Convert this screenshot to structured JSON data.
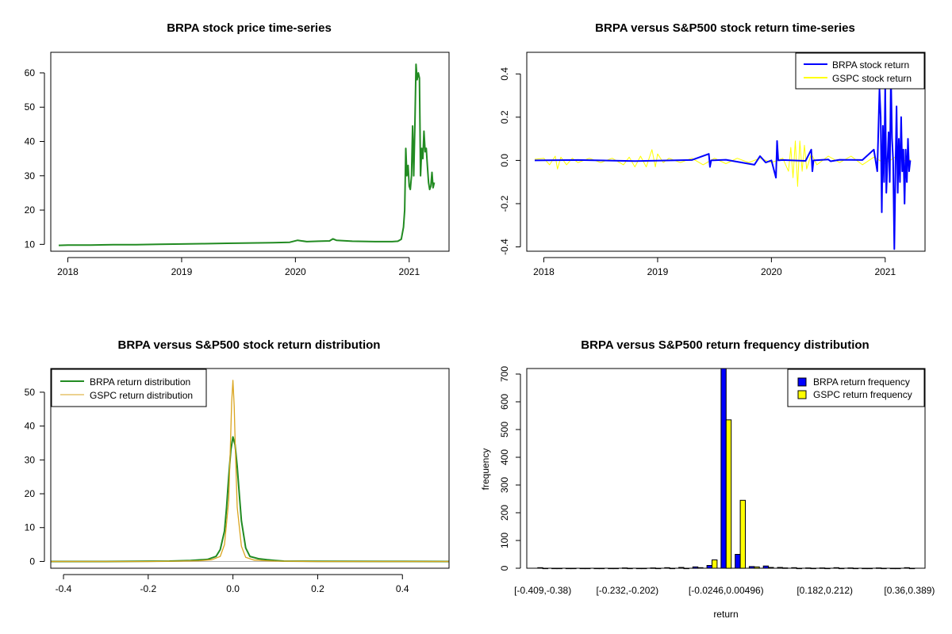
{
  "chart_data": [
    {
      "type": "line",
      "title": "BRPA stock price time-series",
      "xlabel": "",
      "ylabel": "",
      "xlim": [
        2017.85,
        2021.35
      ],
      "ylim": [
        8,
        66
      ],
      "x_ticks": [
        2018,
        2019,
        2020,
        2021
      ],
      "x_tick_labels": [
        "2018",
        "2019",
        "2020",
        "2021"
      ],
      "y_ticks": [
        10,
        20,
        30,
        40,
        50,
        60
      ],
      "y_tick_labels": [
        "10",
        "20",
        "30",
        "40",
        "50",
        "60"
      ],
      "series": [
        {
          "name": "BRPA price",
          "color": "#228B22",
          "x": [
            2017.92,
            2018.0,
            2018.2,
            2018.4,
            2018.6,
            2018.8,
            2019.0,
            2019.2,
            2019.4,
            2019.6,
            2019.8,
            2019.95,
            2020.02,
            2020.1,
            2020.2,
            2020.3,
            2020.33,
            2020.36,
            2020.5,
            2020.7,
            2020.85,
            2020.9,
            2020.93,
            2020.95,
            2020.96,
            2020.97,
            2020.98,
            2020.99,
            2021.0,
            2021.01,
            2021.02,
            2021.03,
            2021.04,
            2021.05,
            2021.06,
            2021.07,
            2021.08,
            2021.09,
            2021.1,
            2021.11,
            2021.12,
            2021.13,
            2021.14,
            2021.15,
            2021.16,
            2021.17,
            2021.18,
            2021.19,
            2021.2,
            2021.21,
            2021.22
          ],
          "y": [
            9.7,
            9.8,
            9.8,
            9.9,
            9.9,
            10.0,
            10.1,
            10.2,
            10.3,
            10.4,
            10.5,
            10.6,
            11.2,
            10.8,
            10.9,
            11.0,
            11.6,
            11.2,
            10.9,
            10.8,
            10.8,
            10.9,
            11.5,
            15.0,
            20.0,
            38.0,
            30.0,
            33.0,
            27.0,
            26.0,
            30.0,
            44.5,
            30.0,
            45.0,
            62.5,
            58.0,
            60.0,
            58.5,
            30.0,
            38.0,
            35.0,
            43.0,
            37.0,
            38.0,
            33.0,
            28.0,
            26.0,
            27.0,
            31.0,
            26.5,
            28.0
          ]
        }
      ]
    },
    {
      "type": "line",
      "title": "BRPA versus S&P500 stock return time-series",
      "xlabel": "",
      "ylabel": "",
      "xlim": [
        2017.85,
        2021.35
      ],
      "ylim": [
        -0.42,
        0.5
      ],
      "x_ticks": [
        2018,
        2019,
        2020,
        2021
      ],
      "x_tick_labels": [
        "2018",
        "2019",
        "2020",
        "2021"
      ],
      "y_ticks": [
        -0.4,
        -0.2,
        0.0,
        0.2,
        0.4
      ],
      "y_tick_labels": [
        "-0.4",
        "-0.2",
        "0.0",
        "0.2",
        "0.4"
      ],
      "legend": {
        "position": "top-right",
        "entries": [
          "BRPA stock return",
          "GSPC stock return"
        ]
      },
      "series": [
        {
          "name": "GSPC stock return",
          "color": "#FFFF00",
          "x": [
            2017.92,
            2018.0,
            2018.05,
            2018.1,
            2018.12,
            2018.15,
            2018.2,
            2018.25,
            2018.3,
            2018.4,
            2018.5,
            2018.6,
            2018.7,
            2018.75,
            2018.8,
            2018.85,
            2018.9,
            2018.95,
            2018.98,
            2019.0,
            2019.05,
            2019.1,
            2019.2,
            2019.3,
            2019.4,
            2019.5,
            2019.6,
            2019.7,
            2019.8,
            2019.9,
            2020.0,
            2020.1,
            2020.15,
            2020.17,
            2020.19,
            2020.21,
            2020.23,
            2020.25,
            2020.27,
            2020.29,
            2020.31,
            2020.35,
            2020.4,
            2020.5,
            2020.6,
            2020.7,
            2020.8,
            2020.9,
            2021.0,
            2021.1,
            2021.2,
            2021.22
          ],
          "y": [
            0.005,
            0.01,
            -0.02,
            0.02,
            -0.04,
            0.015,
            -0.02,
            0.01,
            -0.01,
            0.01,
            -0.01,
            0.01,
            -0.02,
            0.015,
            -0.03,
            0.02,
            -0.03,
            0.05,
            -0.03,
            0.03,
            -0.01,
            0.01,
            -0.01,
            0.01,
            -0.02,
            0.01,
            -0.015,
            0.01,
            -0.01,
            0.01,
            -0.01,
            0.01,
            -0.05,
            0.06,
            -0.08,
            0.09,
            -0.12,
            0.09,
            -0.05,
            0.07,
            -0.04,
            0.03,
            -0.02,
            0.02,
            -0.01,
            0.02,
            -0.02,
            0.015,
            -0.015,
            0.02,
            -0.01,
            0.005
          ]
        },
        {
          "name": "BRPA stock return",
          "color": "#0000FF",
          "x": [
            2017.92,
            2018.3,
            2018.8,
            2019.3,
            2019.45,
            2019.46,
            2019.47,
            2019.6,
            2019.85,
            2019.9,
            2019.95,
            2020.0,
            2020.04,
            2020.05,
            2020.06,
            2020.1,
            2020.3,
            2020.35,
            2020.36,
            2020.37,
            2020.5,
            2020.52,
            2020.6,
            2020.8,
            2020.9,
            2020.93,
            2020.95,
            2020.96,
            2020.97,
            2020.98,
            2020.99,
            2021.0,
            2021.01,
            2021.02,
            2021.03,
            2021.04,
            2021.05,
            2021.06,
            2021.07,
            2021.08,
            2021.09,
            2021.1,
            2021.11,
            2021.12,
            2021.13,
            2021.14,
            2021.15,
            2021.16,
            2021.17,
            2021.18,
            2021.19,
            2021.2,
            2021.21,
            2021.22
          ],
          "y": [
            0.0,
            0.002,
            -0.003,
            0.002,
            0.03,
            -0.03,
            0.0,
            0.003,
            -0.02,
            0.02,
            -0.01,
            0.0,
            -0.08,
            0.09,
            0.0,
            0.002,
            -0.002,
            0.05,
            -0.05,
            0.0,
            0.004,
            -0.004,
            0.003,
            0.002,
            0.05,
            -0.05,
            0.33,
            0.2,
            -0.24,
            0.16,
            -0.1,
            0.35,
            -0.15,
            0.0,
            0.13,
            -0.1,
            0.4,
            0.1,
            0.0,
            -0.41,
            -0.05,
            0.25,
            -0.15,
            0.1,
            -0.1,
            0.2,
            -0.05,
            0.05,
            -0.2,
            0.05,
            -0.1,
            0.1,
            -0.05,
            0.0
          ]
        }
      ]
    },
    {
      "type": "line",
      "title": "BRPA versus S&P500 stock return distribution",
      "xlabel": "",
      "ylabel": "",
      "xlim": [
        -0.43,
        0.51
      ],
      "ylim": [
        -2,
        57
      ],
      "x_ticks": [
        -0.4,
        -0.2,
        0.0,
        0.2,
        0.4
      ],
      "x_tick_labels": [
        "-0.4",
        "-0.2",
        "0.0",
        "0.2",
        "0.4"
      ],
      "y_ticks": [
        0,
        10,
        20,
        30,
        40,
        50
      ],
      "y_tick_labels": [
        "0",
        "10",
        "20",
        "30",
        "40",
        "50"
      ],
      "legend": {
        "position": "top-left",
        "entries": [
          "BRPA return distribution",
          "GSPC return distribution"
        ]
      },
      "series": [
        {
          "name": "BRPA return distribution",
          "color": "#228B22",
          "x": [
            -0.43,
            -0.3,
            -0.15,
            -0.1,
            -0.06,
            -0.04,
            -0.03,
            -0.02,
            -0.015,
            -0.01,
            -0.005,
            0.0,
            0.005,
            0.01,
            0.015,
            0.02,
            0.03,
            0.04,
            0.06,
            0.08,
            0.1,
            0.12,
            0.2,
            0.35,
            0.51
          ],
          "y": [
            0.0,
            0.0,
            0.1,
            0.3,
            0.6,
            1.5,
            3.5,
            9.0,
            16.0,
            25.0,
            33.0,
            36.8,
            34.5,
            28.0,
            20.0,
            12.0,
            4.0,
            1.5,
            0.8,
            0.5,
            0.3,
            0.1,
            0.05,
            0.02,
            0.0
          ]
        },
        {
          "name": "GSPC return distribution",
          "color": "#DAA520",
          "x": [
            -0.43,
            -0.2,
            -0.12,
            -0.08,
            -0.05,
            -0.03,
            -0.02,
            -0.01,
            -0.006,
            -0.003,
            0.0,
            0.003,
            0.006,
            0.01,
            0.02,
            0.03,
            0.05,
            0.08,
            0.1,
            0.2,
            0.51
          ],
          "y": [
            0.0,
            0.0,
            0.1,
            0.2,
            0.5,
            1.5,
            5.0,
            18.0,
            34.0,
            47.0,
            53.5,
            46.0,
            32.0,
            16.0,
            4.5,
            1.2,
            0.4,
            0.2,
            0.1,
            0.0,
            0.0
          ]
        }
      ]
    },
    {
      "type": "bar",
      "title": "BRPA versus S&P500 return frequency distribution",
      "xlabel": "return",
      "ylabel": "frequency",
      "ylim": [
        0,
        720
      ],
      "y_ticks": [
        0,
        100,
        200,
        300,
        400,
        500,
        600,
        700
      ],
      "y_tick_labels": [
        "0",
        "100",
        "200",
        "300",
        "400",
        "500",
        "600",
        "700"
      ],
      "category_tick_labels": [
        {
          "index": 0,
          "label": "[-0.409,-0.38)"
        },
        {
          "index": 6,
          "label": "[-0.232,-0.202)"
        },
        {
          "index": 13,
          "label": "[-0.0246,0.00496)"
        },
        {
          "index": 20,
          "label": "[0.182,0.212)"
        },
        {
          "index": 26,
          "label": "[0.36,0.389)"
        }
      ],
      "legend": {
        "position": "top-right",
        "entries": [
          "BRPA return frequency",
          "GSPC return frequency"
        ]
      },
      "bins": 27,
      "series": [
        {
          "name": "BRPA return frequency",
          "color": "#0000FF",
          "values": [
            2,
            0,
            0,
            0,
            0,
            0,
            1,
            0,
            1,
            2,
            3,
            5,
            10,
            720,
            50,
            6,
            8,
            3,
            2,
            1,
            1,
            2,
            1,
            0,
            1,
            0,
            2
          ]
        },
        {
          "name": "GSPC return frequency",
          "color": "#FFFF00",
          "values": [
            0,
            0,
            0,
            0,
            0,
            0,
            0,
            0,
            0,
            0,
            0,
            2,
            30,
            535,
            245,
            5,
            3,
            1,
            0,
            0,
            0,
            0,
            0,
            0,
            0,
            0,
            0
          ]
        }
      ]
    }
  ]
}
